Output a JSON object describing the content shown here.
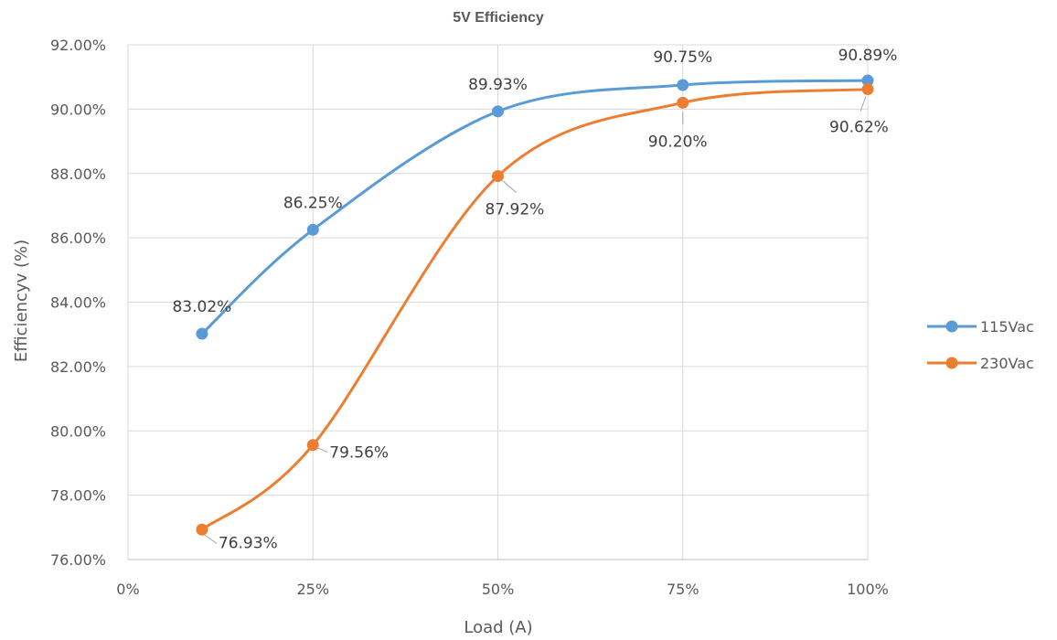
{
  "chart_data": {
    "type": "line",
    "title": "5V Efficiency",
    "xlabel": "Load (A)",
    "ylabel": "Efficiencyv (%)",
    "x_ticks": [
      "0%",
      "25%",
      "50%",
      "75%",
      "100%"
    ],
    "y_ticks": [
      "76.00%",
      "78.00%",
      "80.00%",
      "82.00%",
      "84.00%",
      "86.00%",
      "88.00%",
      "90.00%",
      "92.00%"
    ],
    "xlim": [
      0,
      100
    ],
    "ylim": [
      76,
      92
    ],
    "grid": true,
    "legend_position": "right",
    "series": [
      {
        "name": "115Vac",
        "color": "#5B9BD5",
        "x": [
          10,
          25,
          50,
          75,
          100
        ],
        "values": [
          83.02,
          86.25,
          89.93,
          90.75,
          90.89
        ],
        "labels": [
          "83.02%",
          "86.25%",
          "89.93%",
          "90.75%",
          "90.89%"
        ]
      },
      {
        "name": "230Vac",
        "color": "#ED7D31",
        "x": [
          10,
          25,
          50,
          75,
          100
        ],
        "values": [
          76.93,
          79.56,
          87.92,
          90.2,
          90.62
        ],
        "labels": [
          "76.93%",
          "79.56%",
          "87.92%",
          "90.20%",
          "90.62%"
        ]
      }
    ]
  }
}
